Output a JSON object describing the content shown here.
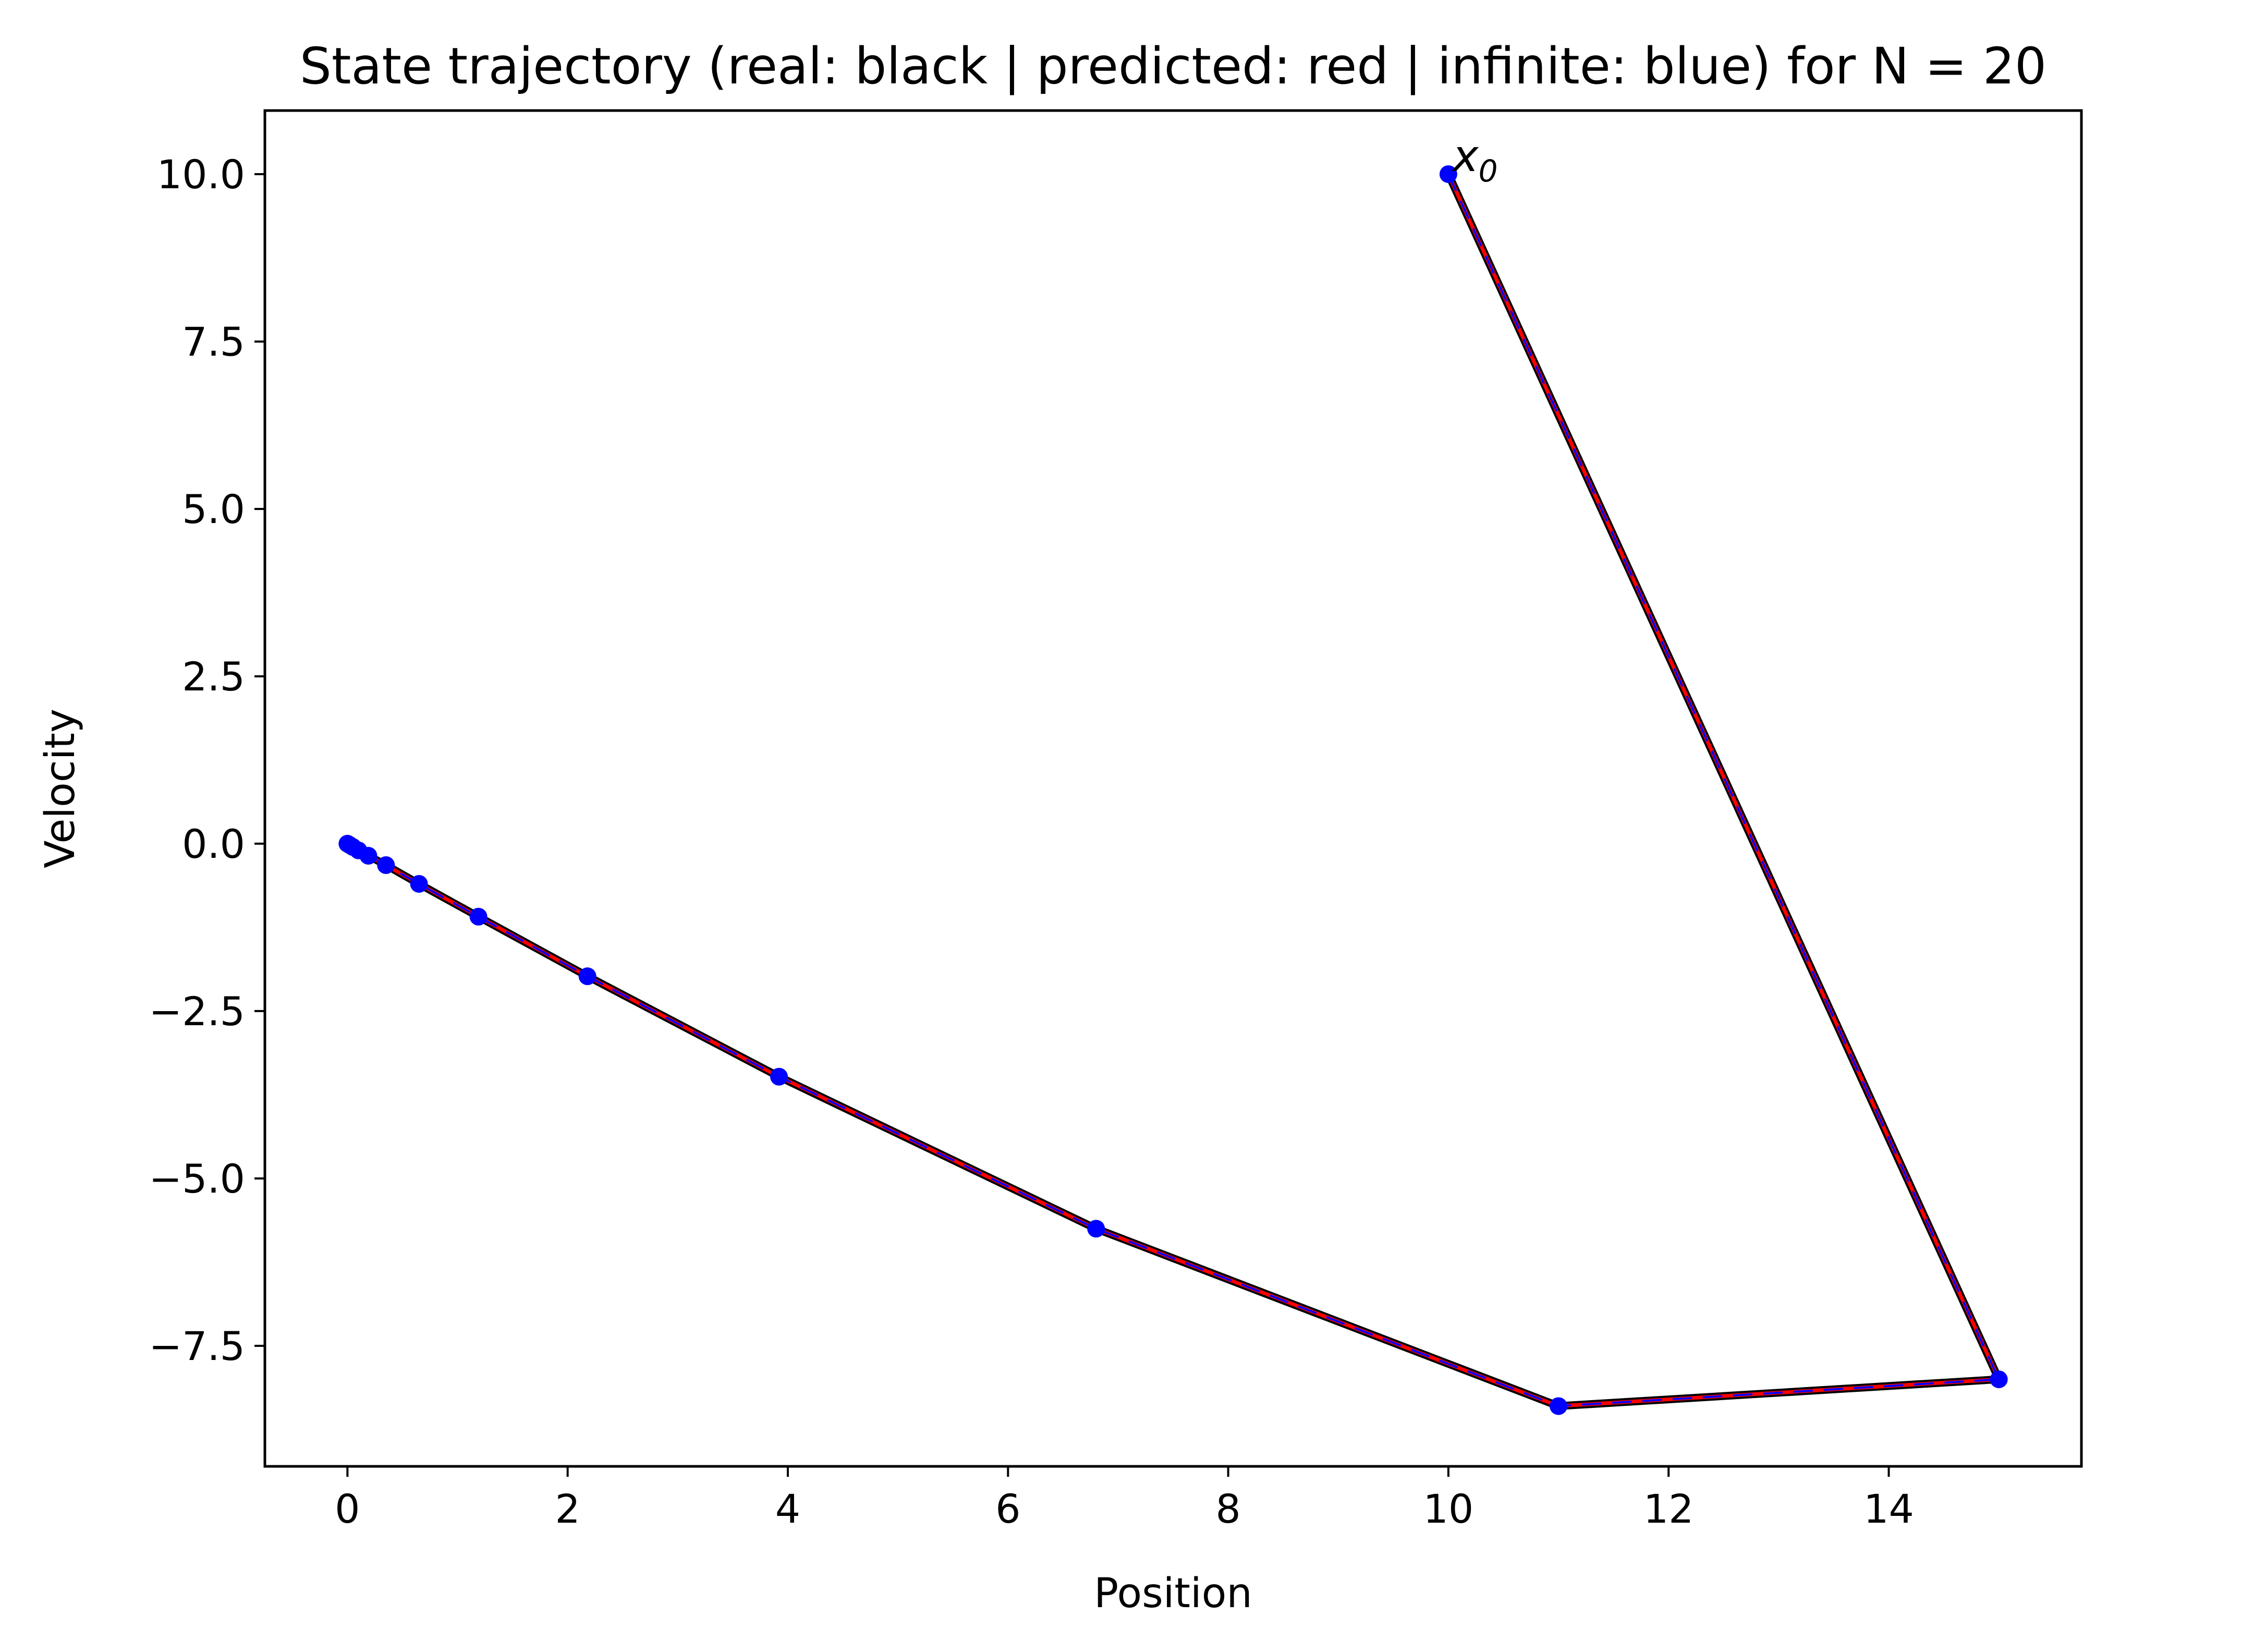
{
  "chart_data": {
    "type": "line",
    "title": "State trajectory (real: black | predicted: red | infinite: blue) for N = 20",
    "xlabel": "Position",
    "ylabel": "Velocity",
    "xlim": [
      -0.75,
      15.75
    ],
    "ylim": [
      -9.3,
      10.95
    ],
    "xticks": [
      0,
      2,
      4,
      6,
      8,
      10,
      12,
      14
    ],
    "xtick_labels": [
      "0",
      "2",
      "4",
      "6",
      "8",
      "10",
      "12",
      "14"
    ],
    "yticks": [
      10.0,
      7.5,
      5.0,
      2.5,
      0.0,
      -2.5,
      -5.0,
      -7.5
    ],
    "ytick_labels": [
      "10.0",
      "7.5",
      "5.0",
      "2.5",
      "0.0",
      "−2.5",
      "−5.0",
      "−7.5"
    ],
    "grid": false,
    "annotation": {
      "text": "x",
      "subscript": "0",
      "x": 10.0,
      "y": 10.0
    },
    "series": [
      {
        "color": "#000000",
        "marker": "none",
        "points": [
          [
            10.0,
            10.0
          ],
          [
            15.0,
            -8.0
          ],
          [
            11.0,
            -8.4
          ],
          [
            6.8,
            -5.75
          ],
          [
            3.92,
            -3.48
          ],
          [
            2.18,
            -1.98
          ],
          [
            1.19,
            -1.09
          ],
          [
            0.65,
            -0.6
          ],
          [
            0.35,
            -0.32
          ],
          [
            0.19,
            -0.18
          ],
          [
            0.1,
            -0.1
          ],
          [
            0.05,
            -0.05
          ],
          [
            0.02,
            -0.02
          ],
          [
            0.0,
            0.0
          ]
        ]
      },
      {
        "color": "#ff0000",
        "marker": "none",
        "points": [
          [
            10.0,
            10.0
          ],
          [
            15.0,
            -8.0
          ],
          [
            11.0,
            -8.4
          ],
          [
            6.8,
            -5.75
          ],
          [
            3.92,
            -3.48
          ],
          [
            2.18,
            -1.98
          ],
          [
            1.19,
            -1.09
          ],
          [
            0.65,
            -0.6
          ],
          [
            0.35,
            -0.32
          ],
          [
            0.19,
            -0.18
          ],
          [
            0.1,
            -0.1
          ],
          [
            0.05,
            -0.05
          ],
          [
            0.02,
            -0.02
          ],
          [
            0.0,
            0.0
          ]
        ]
      },
      {
        "color": "#0000ff",
        "marker": "circle",
        "points": [
          [
            10.0,
            10.0
          ],
          [
            15.0,
            -8.0
          ],
          [
            11.0,
            -8.4
          ],
          [
            6.8,
            -5.75
          ],
          [
            3.92,
            -3.48
          ],
          [
            2.18,
            -1.98
          ],
          [
            1.19,
            -1.09
          ],
          [
            0.65,
            -0.6
          ],
          [
            0.35,
            -0.32
          ],
          [
            0.19,
            -0.18
          ],
          [
            0.1,
            -0.1
          ],
          [
            0.05,
            -0.05
          ],
          [
            0.02,
            -0.02
          ],
          [
            0.0,
            0.0
          ]
        ]
      }
    ]
  }
}
